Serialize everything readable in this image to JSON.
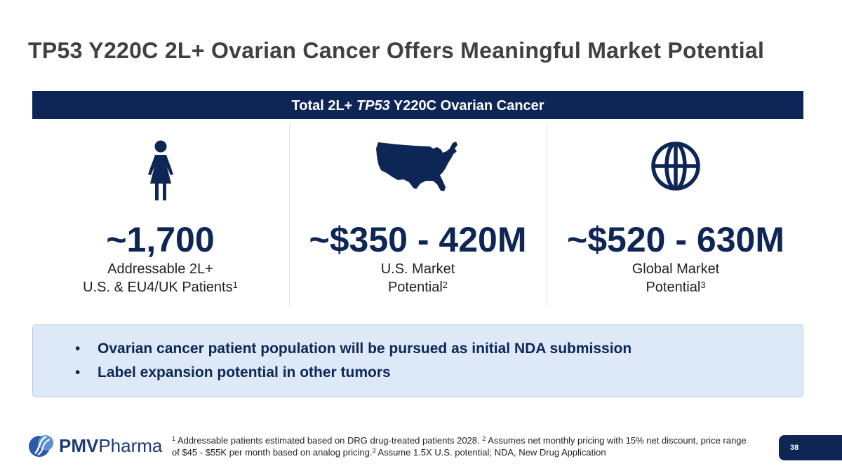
{
  "slide": {
    "title": "TP53 Y220C 2L+ Ovarian Cancer Offers Meaningful Market Potential",
    "banner": {
      "prefix": "Total 2L+ ",
      "italic": "TP53",
      "suffix": " Y220C Ovarian Cancer"
    },
    "page_number": "38"
  },
  "columns": [
    {
      "icon": "woman-icon",
      "value": "~1,700",
      "line1": "Addressable 2L+",
      "line2": "U.S. & EU4/UK Patients",
      "sup": "1"
    },
    {
      "icon": "usa-map-icon",
      "value": "~$350 - 420M",
      "line1": "U.S. Market",
      "line2": "Potential",
      "sup": "2"
    },
    {
      "icon": "globe-icon",
      "value": "~$520 - 630M",
      "line1": "Global Market",
      "line2": "Potential",
      "sup": "3"
    }
  ],
  "callout": {
    "bullets": [
      "Ovarian cancer patient population will be pursued as initial NDA submission",
      "Label expansion potential in other tumors"
    ]
  },
  "footnote": {
    "s1": "1",
    "t1": " Addressable patients estimated based on DRG drug-treated patients 2028. ",
    "s2": "2",
    "t2": " Assumes net monthly pricing with 15% net discount, price range of $45 - $55K per month based on analog pricing.",
    "s3": "3",
    "t3": " Assume 1.5X U.S. potential; NDA, New Drug Application"
  },
  "logo": {
    "bold": "PMV",
    "regular": "Pharma"
  },
  "colors": {
    "navy": "#0e2656",
    "callout_bg": "#dde9f7",
    "title": "#404040"
  }
}
